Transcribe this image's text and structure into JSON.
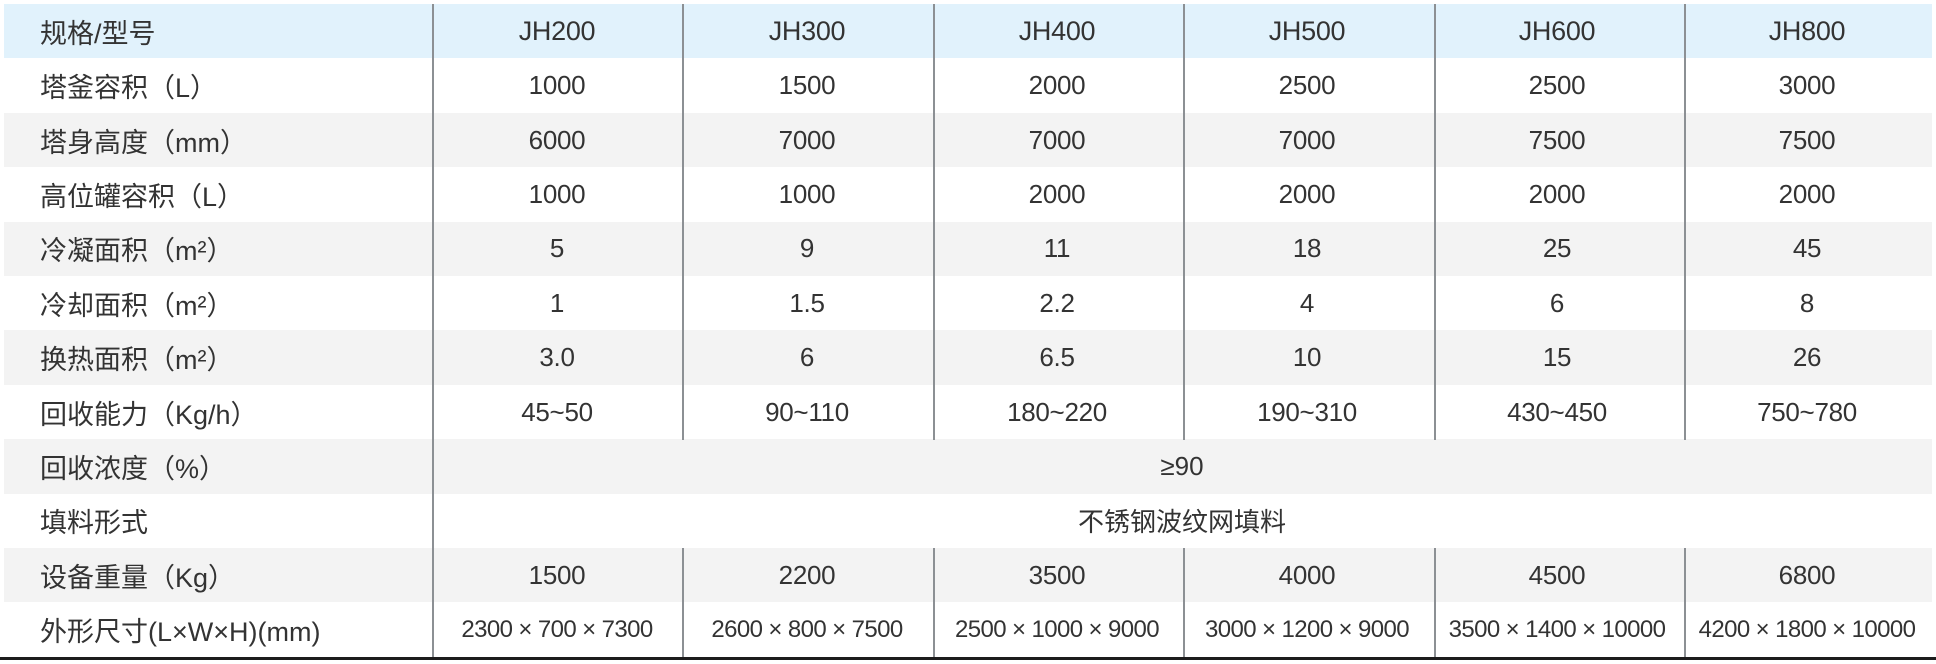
{
  "table": {
    "header": {
      "label": "规格/型号",
      "columns": [
        "JH200",
        "JH300",
        "JH400",
        "JH500",
        "JH600",
        "JH800"
      ]
    },
    "rows": [
      {
        "label": "塔釜容积（L）",
        "values": [
          "1000",
          "1500",
          "2000",
          "2500",
          "2500",
          "3000"
        ]
      },
      {
        "label": "塔身高度（mm）",
        "values": [
          "6000",
          "7000",
          "7000",
          "7000",
          "7500",
          "7500"
        ]
      },
      {
        "label": "高位罐容积（L）",
        "values": [
          "1000",
          "1000",
          "2000",
          "2000",
          "2000",
          "2000"
        ]
      },
      {
        "label": "冷凝面积（m²）",
        "values": [
          "5",
          "9",
          "11",
          "18",
          "25",
          "45"
        ]
      },
      {
        "label": "冷却面积（m²）",
        "values": [
          "1",
          "1.5",
          "2.2",
          "4",
          "6",
          "8"
        ]
      },
      {
        "label": "换热面积（m²）",
        "values": [
          "3.0",
          "6",
          "6.5",
          "10",
          "15",
          "26"
        ]
      },
      {
        "label": "回收能力（Kg/h）",
        "values": [
          "45~50",
          "90~110",
          "180~220",
          "190~310",
          "430~450",
          "750~780"
        ]
      },
      {
        "label": "回收浓度（%）",
        "span": "≥90"
      },
      {
        "label": "填料形式",
        "span": "不锈钢波纹网填料"
      },
      {
        "label": "设备重量（Kg）",
        "values": [
          "1500",
          "2200",
          "3500",
          "4000",
          "4500",
          "6800"
        ]
      },
      {
        "label": "外形尺寸(L×W×H)(mm)",
        "values": [
          "2300 × 700 × 7300",
          "2600 × 800 × 7500",
          "2500 × 1000 × 9000",
          "3000 × 1200 × 9000",
          "3500 × 1400 × 10000",
          "4200 × 1800 × 10000"
        ]
      }
    ],
    "colors": {
      "header_bg": "#e1f2fc",
      "stripe_bg": "#f3f3f3",
      "divider": "#8c9094",
      "bottom_border": "#1c1c1c",
      "text": "#333333"
    }
  }
}
